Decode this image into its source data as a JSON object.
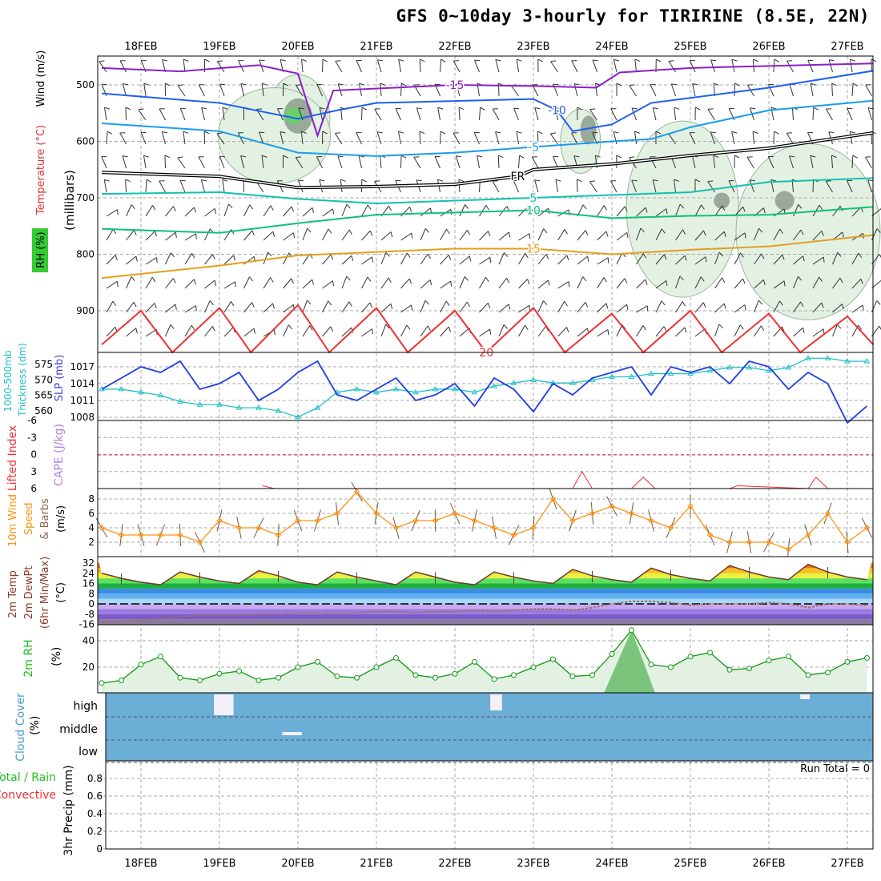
{
  "title": "GFS 0~10day 3-hourly for TIRIRINE (8.5E, 22N)",
  "chart_data": [
    {
      "type": "contour",
      "name": "upper-air",
      "x_ticks": [
        "18FEB",
        "19FEB",
        "20FEB",
        "21FEB",
        "22FEB",
        "23FEB",
        "24FEB",
        "25FEB",
        "26FEB",
        "27FEB"
      ],
      "ylabel": "(millibars)",
      "ylabels": [
        "Wind (m/s)",
        "Temperature (°C)",
        "RH (%)"
      ],
      "yticks": [
        500,
        600,
        700,
        800,
        900
      ],
      "isotherms": [
        {
          "label": "-15",
          "color": "#8a1fc8",
          "pts": [
            [
              -0.5,
              470
            ],
            [
              0.5,
              476
            ],
            [
              1.5,
              465
            ],
            [
              2.0,
              480
            ],
            [
              2.25,
              590
            ],
            [
              2.45,
              510
            ],
            [
              4,
              500
            ],
            [
              5,
              502
            ],
            [
              5.8,
              505
            ],
            [
              6.1,
              478
            ],
            [
              7,
              470
            ],
            [
              9.33,
              462
            ]
          ]
        },
        {
          "label": "-10",
          "color": "#1e5ff0",
          "pts": [
            [
              -0.5,
              515
            ],
            [
              1,
              532
            ],
            [
              2,
              560
            ],
            [
              2.5,
              545
            ],
            [
              3,
              532
            ],
            [
              5,
              525
            ],
            [
              5.3,
              545
            ],
            [
              5.5,
              582
            ],
            [
              6,
              570
            ],
            [
              6.5,
              532
            ],
            [
              8,
              505
            ],
            [
              9.33,
              475
            ]
          ]
        },
        {
          "label": "-5",
          "color": "#1a9cf0",
          "pts": [
            [
              -0.5,
              568
            ],
            [
              1,
              582
            ],
            [
              2,
              620
            ],
            [
              3,
              626
            ],
            [
              4,
              620
            ],
            [
              5,
              610
            ],
            [
              6,
              600
            ],
            [
              6.5,
              596
            ],
            [
              7,
              575
            ],
            [
              8,
              545
            ],
            [
              9.33,
              528
            ]
          ]
        },
        {
          "label": "FR",
          "color": "#000000",
          "pts": [
            [
              -0.5,
              655
            ],
            [
              1,
              662
            ],
            [
              2,
              682
            ],
            [
              3,
              680
            ],
            [
              4,
              676
            ],
            [
              4.8,
              662
            ],
            [
              5,
              650
            ],
            [
              6,
              640
            ],
            [
              7,
              625
            ],
            [
              8,
              612
            ],
            [
              9.33,
              585
            ]
          ]
        },
        {
          "label": "5",
          "color": "#12c0b0",
          "pts": [
            [
              -0.5,
              693
            ],
            [
              1,
              690
            ],
            [
              2,
              702
            ],
            [
              3,
              710
            ],
            [
              4,
              705
            ],
            [
              5,
              700
            ],
            [
              6,
              695
            ],
            [
              7,
              690
            ],
            [
              8,
              672
            ],
            [
              9.33,
              665
            ]
          ]
        },
        {
          "label": "10",
          "color": "#10c078",
          "pts": [
            [
              -0.5,
              755
            ],
            [
              1,
              762
            ],
            [
              2,
              745
            ],
            [
              3,
              730
            ],
            [
              4,
              726
            ],
            [
              5,
              722
            ],
            [
              6,
              736
            ],
            [
              7,
              732
            ],
            [
              8,
              730
            ],
            [
              9.33,
              716
            ]
          ]
        },
        {
          "label": "15",
          "color": "#e0a020",
          "pts": [
            [
              -0.5,
              842
            ],
            [
              1,
              820
            ],
            [
              2,
              802
            ],
            [
              3,
              796
            ],
            [
              4,
              790
            ],
            [
              5,
              790
            ],
            [
              6,
              800
            ],
            [
              7,
              792
            ],
            [
              8,
              786
            ],
            [
              9.33,
              766
            ]
          ]
        },
        {
          "label": "20",
          "color": "#ee3030",
          "pts": [
            [
              -0.5,
              960
            ],
            [
              0,
              900
            ],
            [
              0.4,
              975
            ],
            [
              1,
              895
            ],
            [
              1.4,
              975
            ],
            [
              2,
              890
            ],
            [
              2.4,
              975
            ],
            [
              3,
              895
            ],
            [
              3.4,
              975
            ],
            [
              4,
              900
            ],
            [
              4.4,
              975
            ],
            [
              5,
              895
            ],
            [
              5.4,
              975
            ],
            [
              6,
              905
            ],
            [
              6.4,
              975
            ],
            [
              7,
              900
            ],
            [
              7.4,
              975
            ],
            [
              8,
              905
            ],
            [
              8.4,
              975
            ],
            [
              9,
              910
            ],
            [
              9.33,
              960
            ]
          ]
        }
      ]
    },
    {
      "type": "line",
      "name": "thickness-slp",
      "ylabel_left": "1000-500mb Thickness (dm)",
      "ylabel_right": "SLP (mb)",
      "thickness_ticks": [
        560,
        565,
        570,
        575
      ],
      "slp_ticks": [
        1008,
        1011,
        1014,
        1017
      ],
      "thickness": [
        567,
        567,
        566,
        565,
        563,
        562,
        562,
        561,
        561,
        560,
        558,
        561,
        566,
        567,
        566,
        567,
        566,
        567,
        567,
        566,
        568,
        569,
        570,
        569,
        569,
        570,
        571,
        571,
        572,
        572,
        572,
        573,
        574,
        574,
        573,
        574,
        577,
        577,
        576,
        576
      ],
      "slp": [
        1013,
        1015,
        1017,
        1016,
        1018,
        1013,
        1014,
        1016,
        1011,
        1013,
        1016,
        1018,
        1012,
        1011,
        1013,
        1015,
        1011,
        1012,
        1014,
        1010,
        1015,
        1013,
        1009,
        1014,
        1012,
        1015,
        1016,
        1017,
        1012,
        1017,
        1016,
        1017,
        1014,
        1018,
        1017,
        1013,
        1016,
        1014,
        1007,
        1010
      ]
    },
    {
      "type": "line",
      "name": "lifted-index-cape",
      "ylabel_left": "Lifted Index",
      "ylabel_right": "CAPE (J/kg)",
      "yticks": [
        -6,
        -3,
        0,
        3,
        6
      ],
      "li_points": [
        [
          1.55,
          5.5
        ],
        [
          1.7,
          6
        ],
        [
          5.5,
          6
        ],
        [
          5.62,
          3
        ],
        [
          5.75,
          6
        ],
        [
          6.25,
          6
        ],
        [
          6.4,
          4
        ],
        [
          6.55,
          6
        ],
        [
          7.5,
          6
        ],
        [
          7.6,
          5.5
        ],
        [
          8.5,
          6
        ],
        [
          8.6,
          4
        ],
        [
          8.75,
          6
        ]
      ]
    },
    {
      "type": "line",
      "name": "wind-10m",
      "ylabel": "10m Wind Speed & Barbs (m/s)",
      "yticks": [
        2,
        4,
        6,
        8
      ],
      "speed": [
        4,
        3,
        3,
        3,
        3,
        2,
        5,
        4,
        4,
        3,
        5,
        5,
        6,
        9,
        6,
        4,
        5,
        5,
        6,
        5,
        4,
        3,
        4,
        8,
        5,
        6,
        7,
        6,
        5,
        4,
        7,
        3,
        2,
        2,
        2,
        1,
        3,
        6,
        2,
        4
      ]
    },
    {
      "type": "area",
      "name": "temperature-2m",
      "ylabel": "2m Temp / 2m DewPt (6hr Min/Max) (°C)",
      "yticks": [
        -16,
        -8,
        0,
        8,
        16,
        24,
        32
      ],
      "temp": [
        24,
        20,
        17,
        15,
        25,
        21,
        18,
        16,
        26,
        22,
        17,
        15,
        25,
        21,
        18,
        15,
        25,
        21,
        17,
        15,
        25,
        21,
        18,
        16,
        27,
        22,
        19,
        17,
        28,
        23,
        20,
        18,
        30,
        25,
        21,
        19,
        31,
        25,
        21,
        19
      ],
      "dewpoint": [
        -14,
        -14,
        -13,
        -12,
        -10,
        -9,
        -9,
        -9,
        -8,
        -8,
        -7,
        -7,
        -8,
        -7,
        -6,
        -6,
        -7,
        -6,
        -6,
        -5,
        -6,
        -5,
        -4,
        -4,
        -5,
        -3,
        0,
        2,
        2,
        1,
        -1,
        0,
        0,
        0,
        1,
        0,
        -3,
        0,
        0,
        -1
      ]
    },
    {
      "type": "area",
      "name": "rh-2m",
      "ylabel": "2m RH (%)",
      "yticks": [
        20,
        40
      ],
      "rh": [
        8,
        10,
        22,
        28,
        12,
        10,
        15,
        17,
        10,
        12,
        20,
        24,
        13,
        12,
        20,
        27,
        14,
        12,
        15,
        24,
        11,
        14,
        20,
        26,
        13,
        14,
        30,
        48,
        22,
        20,
        28,
        31,
        18,
        19,
        25,
        28,
        14,
        16,
        24,
        27
      ]
    },
    {
      "type": "bar",
      "name": "cloud-cover",
      "ylabel": "Cloud Cover (%)",
      "levels": [
        "high",
        "middle",
        "low"
      ],
      "blocks": [
        {
          "level": "high",
          "t0": 0.93,
          "t1": 1.18
        },
        {
          "level": "high",
          "t0": 4.45,
          "t1": 4.6
        },
        {
          "level": "high",
          "t0": 8.4,
          "t1": 8.52
        },
        {
          "level": "middle",
          "t0": 1.8,
          "t1": 2.05
        }
      ]
    },
    {
      "type": "bar",
      "name": "precip-3hr",
      "ylabel": "3hr Precip (mm)",
      "legend": [
        "Total / Rain",
        "Convective"
      ],
      "yticks": [
        "0",
        "0.2",
        "0.4",
        "0.6",
        "0.8"
      ],
      "run_total": "Run Total = 0"
    }
  ],
  "colors": {
    "slp": "#1e3ce6",
    "thickness": "#20c0c8",
    "li": "#ee3030",
    "wind": "#ff9010",
    "rh": "#119911",
    "cloud": "#6baed6"
  }
}
